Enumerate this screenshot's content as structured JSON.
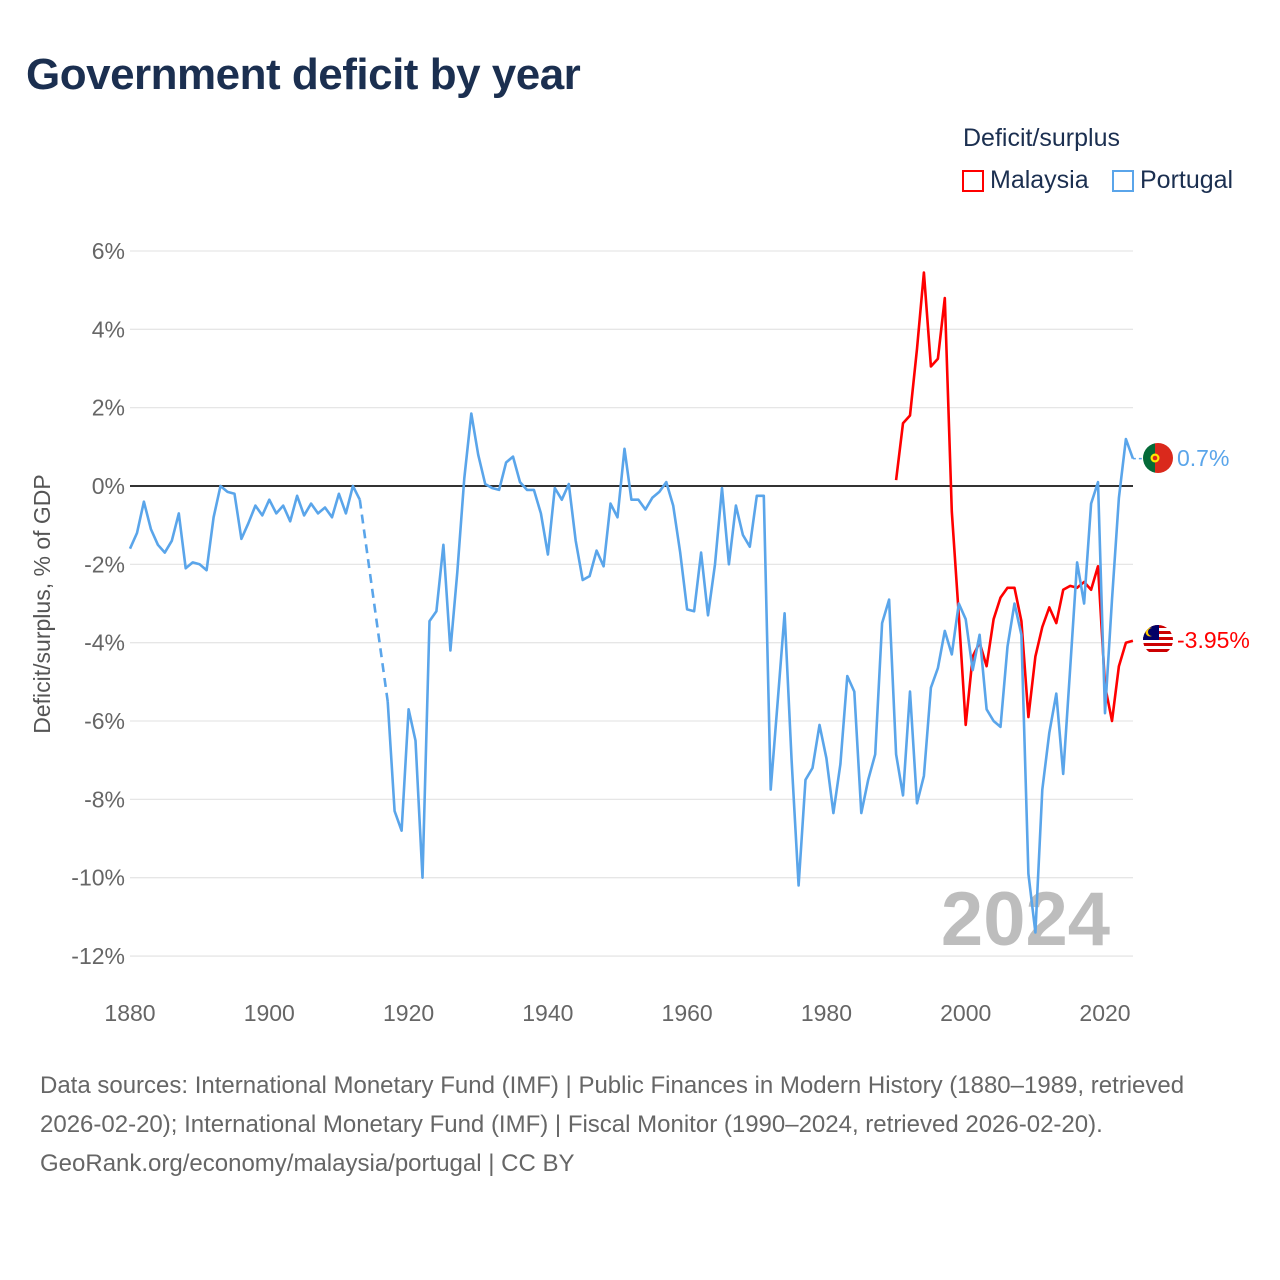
{
  "title": "Government deficit by year",
  "legend": {
    "title": "Deficit/surplus",
    "items": [
      {
        "label": "Malaysia",
        "color": "#ff0000"
      },
      {
        "label": "Portugal",
        "color": "#5aa5ea"
      }
    ]
  },
  "year_watermark": "2024",
  "end_labels": {
    "portugal": "0.7%",
    "malaysia": "-3.95%"
  },
  "footer": {
    "sources": "Data sources: International Monetary Fund (IMF) | Public Finances in Modern History (1880–1989, retrieved 2026-02-20); International Monetary Fund (IMF) | Fiscal Monitor (1990–2024, retrieved 2026-02-20).",
    "credit": "GeoRank.org/economy/malaysia/portugal | CC BY"
  },
  "chart_data": {
    "type": "line",
    "title": "Government deficit by year",
    "xlabel": "",
    "ylabel": "Deficit/surplus, % of GDP",
    "xlim": [
      1880,
      2024
    ],
    "ylim": [
      -12,
      6
    ],
    "x_ticks": [
      1880,
      1900,
      1920,
      1940,
      1960,
      1980,
      2000,
      2020
    ],
    "x_tick_labels": [
      "1880",
      "1900",
      "1920",
      "1940",
      "1960",
      "1980",
      "2000",
      "2020"
    ],
    "y_ticks": [
      6,
      4,
      2,
      0,
      -2,
      -4,
      -6,
      -8,
      -10,
      -12
    ],
    "y_tick_labels": [
      "6%",
      "4%",
      "2%",
      "0%",
      "-2%",
      "-4%",
      "-6%",
      "-8%",
      "-10%",
      "-12%"
    ],
    "legend_position": "top-right",
    "series": [
      {
        "name": "Portugal",
        "color": "#5aa5ea",
        "start_year": 1880,
        "values": [
          -1.6,
          -1.2,
          -0.4,
          -1.1,
          -1.5,
          -1.7,
          -1.4,
          -0.7,
          -2.1,
          -1.95,
          -2.0,
          -2.15,
          -0.8,
          0,
          -0.15,
          -0.2,
          -1.35,
          -0.95,
          -0.5,
          -0.75,
          -0.35,
          -0.7,
          -0.5,
          -0.9,
          -0.25,
          -0.75,
          -0.45,
          -0.7,
          -0.55,
          -0.8,
          -0.2,
          -0.7,
          0,
          -0.35,
          null,
          null,
          null,
          -5.5,
          -8.3,
          -8.8,
          -5.7,
          -6.5,
          -10.0,
          -3.45,
          -3.2,
          -1.5,
          -4.2,
          -2.2,
          0.2,
          1.85,
          0.8,
          0.05,
          -0.05,
          -0.1,
          0.6,
          0.75,
          0.1,
          -0.1,
          -0.1,
          -0.7,
          -1.75,
          -0.05,
          -0.35,
          0.05,
          -1.4,
          -2.4,
          -2.3,
          -1.65,
          -2.05,
          -0.45,
          -0.8,
          0.95,
          -0.35,
          -0.35,
          -0.6,
          -0.3,
          -0.15,
          0.1,
          -0.5,
          -1.7,
          -3.15,
          -3.2,
          -1.7,
          -3.3,
          -2.0,
          -0.05,
          -2.0,
          -0.5,
          -1.25,
          -1.55,
          -0.25,
          -0.25,
          -7.75,
          -5.5,
          -3.25,
          -7.0,
          -10.2,
          -7.5,
          -7.2,
          -6.1,
          -6.95,
          -8.35,
          -7.1,
          -4.85,
          -5.25,
          -8.35,
          -7.5,
          -6.85,
          -3.5,
          -2.9,
          -6.85,
          -7.9,
          -5.25,
          -8.1,
          -7.4,
          -5.15,
          -4.65,
          -3.7,
          -4.3,
          -3.0,
          -3.4,
          -4.7,
          -3.8,
          -5.7,
          -6.0,
          -6.15,
          -4.1,
          -3.0,
          -3.8,
          -9.9,
          -11.4,
          -7.75,
          -6.3,
          -5.3,
          -7.35,
          -4.65,
          -1.95,
          -3.0,
          -0.45,
          0.1,
          -5.8,
          -2.9,
          -0.3,
          1.2,
          0.7
        ]
      },
      {
        "name": "Malaysia",
        "color": "#ff0000",
        "start_year": 1990,
        "values": [
          0.15,
          1.6,
          1.8,
          3.5,
          5.45,
          3.05,
          3.25,
          4.8,
          -0.65,
          -3.3,
          -6.1,
          -4.35,
          -4.0,
          -4.6,
          -3.4,
          -2.85,
          -2.6,
          -2.6,
          -3.45,
          -5.9,
          -4.35,
          -3.6,
          -3.1,
          -3.5,
          -2.65,
          -2.55,
          -2.6,
          -2.45,
          -2.65,
          -2.05,
          -5.1,
          -6.0,
          -4.6,
          -4.0,
          -3.95
        ]
      }
    ]
  }
}
